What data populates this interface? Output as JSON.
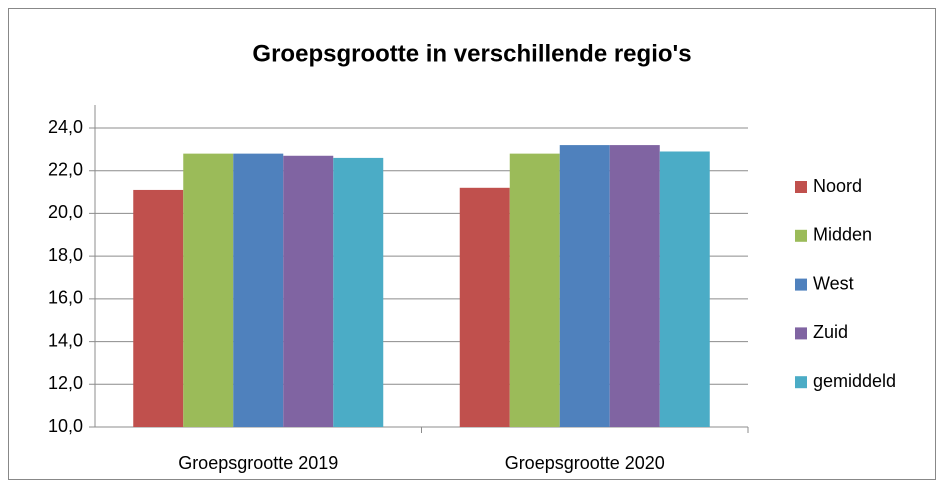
{
  "chart_data": {
    "type": "bar",
    "title": "Groepsgrootte in verschillende regio's",
    "categories": [
      "Groepsgrootte 2019",
      "Groepsgrootte 2020"
    ],
    "series": [
      {
        "name": "Noord",
        "color": "#c0504d",
        "values": [
          21.1,
          21.2
        ]
      },
      {
        "name": "Midden",
        "color": "#9bbb59",
        "values": [
          22.8,
          22.8
        ]
      },
      {
        "name": "West",
        "color": "#4f81bd",
        "values": [
          22.8,
          23.2
        ]
      },
      {
        "name": "Zuid",
        "color": "#8064a2",
        "values": [
          22.7,
          23.2
        ]
      },
      {
        "name": "gemiddeld",
        "color": "#4bacc6",
        "values": [
          22.6,
          22.9
        ]
      }
    ],
    "ylim": [
      10,
      24
    ],
    "yticks": [
      {
        "value": 10,
        "label": "10,0"
      },
      {
        "value": 12,
        "label": "12,0"
      },
      {
        "value": 14,
        "label": "14,0"
      },
      {
        "value": 16,
        "label": "16,0"
      },
      {
        "value": 18,
        "label": "18,0"
      },
      {
        "value": 20,
        "label": "20,0"
      },
      {
        "value": 22,
        "label": "22,0"
      },
      {
        "value": 24,
        "label": "24,0"
      }
    ],
    "grid": true,
    "legend": "right"
  }
}
